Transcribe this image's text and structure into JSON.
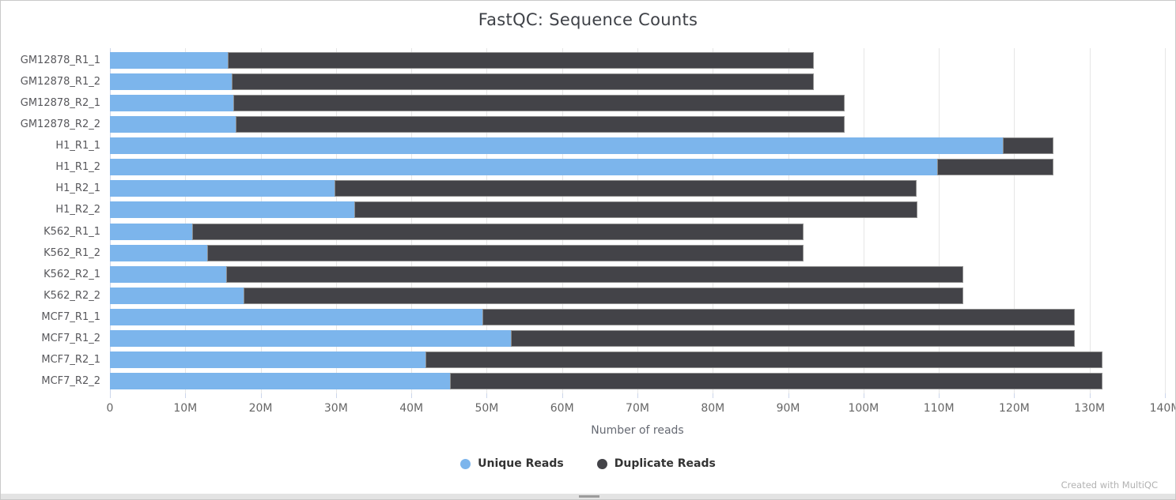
{
  "page": {
    "title": "FastQC: Sequence Counts",
    "footer_credit": "Created with MultiQC"
  },
  "chart_data": {
    "type": "bar",
    "orientation": "horizontal",
    "stacked": true,
    "title": "FastQC: Sequence Counts",
    "xlabel": "Number of reads",
    "ylabel": "",
    "grid": true,
    "legend_position": "bottom",
    "unit": "millions of reads",
    "xlim_millions": [
      0,
      140
    ],
    "xticks_millions": [
      0,
      10,
      20,
      30,
      40,
      50,
      60,
      70,
      80,
      90,
      100,
      110,
      120,
      130,
      140
    ],
    "xtick_labels": [
      "0",
      "10M",
      "20M",
      "30M",
      "40M",
      "50M",
      "60M",
      "70M",
      "80M",
      "90M",
      "100M",
      "110M",
      "120M",
      "130M",
      "140M"
    ],
    "categories": [
      "GM12878_R1_1",
      "GM12878_R1_2",
      "GM12878_R2_1",
      "GM12878_R2_2",
      "H1_R1_1",
      "H1_R1_2",
      "H1_R2_1",
      "H1_R2_2",
      "K562_R1_1",
      "K562_R1_2",
      "K562_R2_1",
      "K562_R2_2",
      "MCF7_R1_1",
      "MCF7_R1_2",
      "MCF7_R2_1",
      "MCF7_R2_2"
    ],
    "series": [
      {
        "name": "Unique Reads",
        "color": "#7cb5ec",
        "values_millions": [
          15.6,
          16.2,
          16.4,
          16.7,
          118.5,
          109.8,
          29.8,
          32.4,
          10.9,
          12.9,
          15.4,
          17.7,
          49.4,
          53.2,
          41.9,
          45.1
        ]
      },
      {
        "name": "Duplicate Reads",
        "color": "#434348",
        "values_millions": [
          77.8,
          77.2,
          81.1,
          80.8,
          6.7,
          15.4,
          77.3,
          74.7,
          81.1,
          79.1,
          97.8,
          95.5,
          78.6,
          74.8,
          89.8,
          86.6
        ]
      }
    ],
    "totals_millions": [
      93.4,
      93.4,
      97.5,
      97.5,
      125.2,
      125.2,
      107.1,
      107.1,
      92.0,
      92.0,
      113.2,
      113.2,
      128.0,
      128.0,
      131.7,
      131.7
    ]
  },
  "colors": {
    "unique_reads": "#7cb5ec",
    "duplicate_reads": "#434348",
    "gridline": "#e6e6e6",
    "axis_line": "#ccd6eb",
    "title_text": "#3e4147",
    "tick_text": "#666666",
    "legend_text": "#333333",
    "footer_text": "#b2b2b2"
  }
}
